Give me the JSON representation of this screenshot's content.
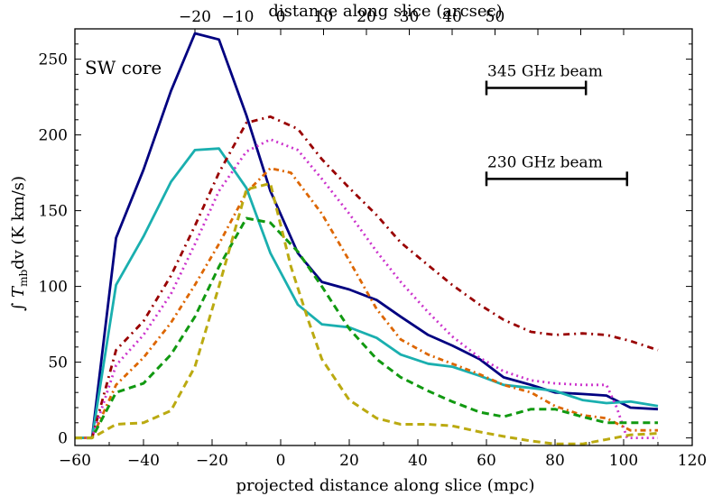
{
  "chart_data": {
    "type": "line",
    "panel_label": "SW core",
    "xlabel": "projected distance along slice (mpc)",
    "ylabel_parts": [
      "∫ ",
      "T",
      "mb",
      "dv (K km/s)"
    ],
    "top_xlabel": "distance along slice (arcsec)",
    "xlim": [
      -60,
      120
    ],
    "ylim": [
      -5,
      270
    ],
    "xticks": [
      -60,
      -40,
      -20,
      0,
      20,
      40,
      60,
      80,
      100,
      120
    ],
    "xtick_labels": [
      "−60",
      "−40",
      "−20",
      "0",
      "20",
      "40",
      "60",
      "80",
      "100",
      "120"
    ],
    "yticks": [
      0,
      50,
      100,
      150,
      200,
      250
    ],
    "ytick_labels": [
      "0",
      "50",
      "100",
      "150",
      "200",
      "250"
    ],
    "top_ticks_mpc": [
      -25,
      -12.5,
      0,
      12.5,
      25,
      37.5,
      50,
      62.5,
      75,
      87.5,
      100
    ],
    "top_tick_labels": [
      "−20",
      "−10",
      "0",
      "10",
      "20",
      "30",
      "40",
      "50"
    ],
    "top_tick_label_mpc": [
      -25,
      -12.5,
      0,
      12.5,
      25,
      37.5,
      50,
      62.5
    ],
    "beams": [
      {
        "name": "345 GHz beam",
        "x0": 60,
        "x1": 89,
        "y": 231
      },
      {
        "name": "230 GHz beam",
        "x0": 60,
        "x1": 101,
        "y": 171
      }
    ],
    "series": [
      {
        "name": "navy-solid",
        "color": "#000080",
        "dash": "",
        "width": 2.8,
        "x": [
          -60,
          -55,
          -48,
          -40,
          -32,
          -25,
          -18,
          -10,
          -3,
          5,
          12,
          20,
          28,
          35,
          43,
          50,
          58,
          65,
          73,
          80,
          88,
          95,
          102,
          110
        ],
        "y": [
          0,
          0,
          132,
          177,
          229,
          267,
          263,
          213,
          163,
          122,
          103,
          98,
          91,
          80,
          68,
          61,
          52,
          40,
          35,
          30,
          29,
          28,
          20,
          19
        ]
      },
      {
        "name": "teal-solid",
        "color": "#1aafaf",
        "dash": "",
        "width": 2.8,
        "x": [
          -60,
          -55,
          -48,
          -40,
          -32,
          -25,
          -18,
          -10,
          -3,
          5,
          12,
          20,
          28,
          35,
          43,
          50,
          58,
          65,
          73,
          80,
          88,
          95,
          102,
          110
        ],
        "y": [
          0,
          0,
          101,
          133,
          169,
          190,
          191,
          165,
          122,
          88,
          75,
          73,
          66,
          55,
          49,
          47,
          41,
          35,
          33,
          31,
          25,
          23,
          24,
          21
        ]
      },
      {
        "name": "darkred-dashdot",
        "color": "#990000",
        "dash": "7,5,2,5",
        "width": 2.8,
        "x": [
          -60,
          -55,
          -48,
          -40,
          -32,
          -25,
          -18,
          -10,
          -3,
          5,
          12,
          20,
          28,
          35,
          43,
          50,
          58,
          65,
          73,
          80,
          88,
          95,
          102,
          110
        ],
        "y": [
          0,
          0,
          58,
          77,
          107,
          140,
          175,
          208,
          212,
          204,
          184,
          165,
          147,
          129,
          114,
          101,
          88,
          78,
          70,
          68,
          69,
          68,
          64,
          58
        ]
      },
      {
        "name": "magenta-dotted",
        "color": "#cc33cc",
        "dash": "2,4",
        "width": 2.8,
        "x": [
          -60,
          -55,
          -48,
          -40,
          -32,
          -25,
          -18,
          -10,
          -3,
          5,
          12,
          20,
          28,
          35,
          43,
          50,
          58,
          65,
          73,
          80,
          88,
          95,
          98,
          101,
          105,
          110
        ],
        "y": [
          0,
          0,
          48,
          68,
          95,
          128,
          163,
          189,
          197,
          190,
          171,
          148,
          123,
          103,
          83,
          67,
          53,
          44,
          38,
          36,
          35,
          35,
          20,
          0,
          0,
          0
        ]
      },
      {
        "name": "orange-dashdot",
        "color": "#dd6600",
        "dash": "6,4,2,4",
        "width": 2.8,
        "x": [
          -60,
          -55,
          -48,
          -40,
          -32,
          -25,
          -18,
          -10,
          -3,
          3,
          12,
          20,
          28,
          35,
          43,
          50,
          58,
          65,
          73,
          80,
          88,
          95,
          102,
          110
        ],
        "y": [
          0,
          0,
          35,
          53,
          76,
          101,
          128,
          162,
          178,
          175,
          148,
          117,
          85,
          65,
          55,
          49,
          42,
          35,
          30,
          21,
          15,
          13,
          5,
          5
        ]
      },
      {
        "name": "green-dashed",
        "color": "#119911",
        "dash": "8,5",
        "width": 3,
        "x": [
          -60,
          -55,
          -48,
          -40,
          -32,
          -25,
          -18,
          -10,
          -3,
          5,
          12,
          20,
          28,
          35,
          43,
          50,
          58,
          65,
          73,
          80,
          88,
          95,
          102,
          110
        ],
        "y": [
          0,
          0,
          30,
          36,
          55,
          80,
          113,
          145,
          142,
          123,
          100,
          72,
          52,
          40,
          31,
          24,
          17,
          14,
          19,
          19,
          14,
          10,
          10,
          10
        ]
      },
      {
        "name": "olive-dashed",
        "color": "#bbaa11",
        "dash": "8,5",
        "width": 3,
        "x": [
          -60,
          -55,
          -48,
          -40,
          -32,
          -25,
          -18,
          -10,
          -3,
          3,
          8,
          12,
          20,
          28,
          35,
          43,
          50,
          58,
          65,
          73,
          80,
          88,
          95,
          102,
          110
        ],
        "y": [
          0,
          0,
          9,
          10,
          18,
          47,
          100,
          164,
          168,
          113,
          78,
          52,
          25,
          13,
          9,
          9,
          8,
          4,
          1,
          -2,
          -4,
          -4,
          -1,
          2,
          3
        ]
      }
    ]
  }
}
